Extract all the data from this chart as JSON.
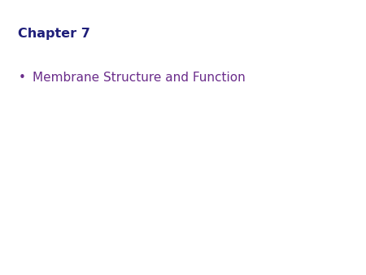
{
  "title": "Chapter 7",
  "title_color": "#1f1f7a",
  "title_fontsize": 11.5,
  "title_bold": true,
  "bullet_text": "Membrane Structure and Function",
  "bullet_color": "#6b2d8b",
  "bullet_fontsize": 11,
  "background_color": "#ffffff"
}
